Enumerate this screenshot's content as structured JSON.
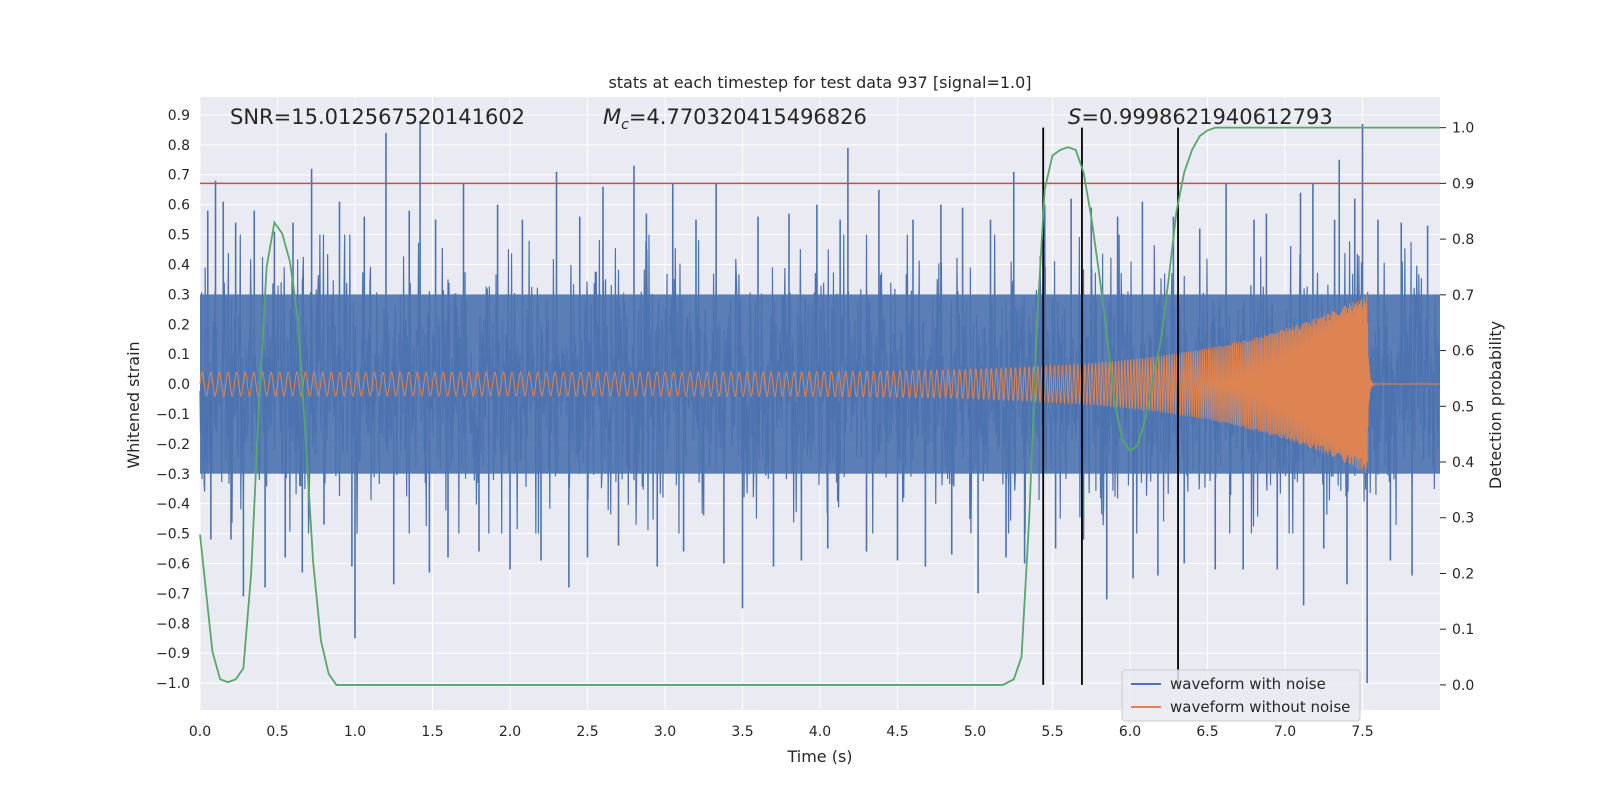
{
  "chart_data": {
    "type": "line",
    "title": "stats at each timestep for test data 937 [signal=1.0]",
    "xlabel": "Time (s)",
    "ylabel": "Whitened strain",
    "y2label": "Detection probability",
    "xlim": [
      0.0,
      8.0
    ],
    "ylim": [
      -1.09,
      0.96
    ],
    "y2lim": [
      -0.045,
      1.055
    ],
    "xticks": [
      0.0,
      0.5,
      1.0,
      1.5,
      2.0,
      2.5,
      3.0,
      3.5,
      4.0,
      4.5,
      5.0,
      5.5,
      6.0,
      6.5,
      7.0,
      7.5
    ],
    "xtick_labels": [
      "0.0",
      "0.5",
      "1.0",
      "1.5",
      "2.0",
      "2.5",
      "3.0",
      "3.5",
      "4.0",
      "4.5",
      "5.0",
      "5.5",
      "6.0",
      "6.5",
      "7.0",
      "7.5"
    ],
    "yticks": [
      0.9,
      0.8,
      0.7,
      0.6,
      0.5,
      0.4,
      0.3,
      0.2,
      0.1,
      0.0,
      -0.1,
      -0.2,
      -0.3,
      -0.4,
      -0.5,
      -0.6,
      -0.7,
      -0.8,
      -0.9,
      -1.0
    ],
    "ytick_labels": [
      "0.9",
      "0.8",
      "0.7",
      "0.6",
      "0.5",
      "0.4",
      "0.3",
      "0.2",
      "0.1",
      "0.0",
      "−0.1",
      "−0.2",
      "−0.3",
      "−0.4",
      "−0.5",
      "−0.6",
      "−0.7",
      "−0.8",
      "−0.9",
      "−1.0"
    ],
    "y2ticks": [
      1.0,
      0.9,
      0.8,
      0.7,
      0.6,
      0.5,
      0.4,
      0.3,
      0.2,
      0.1,
      0.0
    ],
    "y2tick_labels": [
      "1.0",
      "0.9",
      "0.8",
      "0.7",
      "0.6",
      "0.5",
      "0.4",
      "0.3",
      "0.2",
      "0.1",
      "0.0"
    ],
    "grid": true,
    "annotations": {
      "snr": "SNR=15.012567520141602",
      "mc_symbol": "M",
      "mc_sub": "c",
      "mc_value": "=4.770320415496826",
      "s_symbol": "S",
      "s_value": "=0.9998621940612793"
    },
    "threshold": {
      "value": 0.9,
      "axis": "y2",
      "color": "#c44e52"
    },
    "vertical_lines": {
      "x": [
        5.44,
        5.69,
        6.31
      ],
      "y2_range": [
        0.0,
        1.0
      ],
      "color": "#000000"
    },
    "series": [
      {
        "name": "waveform with noise",
        "axis": "y",
        "color": "#4c72b0",
        "noise_std": 0.2,
        "spikes": [
          [
            0.05,
            0.58
          ],
          [
            0.07,
            -0.52
          ],
          [
            0.1,
            0.68
          ],
          [
            0.15,
            0.61
          ],
          [
            0.2,
            -0.52
          ],
          [
            0.23,
            0.54
          ],
          [
            0.28,
            -0.71
          ],
          [
            0.35,
            0.58
          ],
          [
            0.42,
            -0.68
          ],
          [
            0.48,
            0.51
          ],
          [
            0.55,
            -0.58
          ],
          [
            0.6,
            0.54
          ],
          [
            0.66,
            -0.63
          ],
          [
            0.72,
            0.72
          ],
          [
            0.8,
            -0.47
          ],
          [
            0.9,
            0.61
          ],
          [
            0.98,
            -0.61
          ],
          [
            1.0,
            -0.85
          ],
          [
            1.06,
            0.56
          ],
          [
            1.2,
            0.84
          ],
          [
            1.25,
            -0.67
          ],
          [
            1.35,
            0.58
          ],
          [
            1.42,
            0.88
          ],
          [
            1.48,
            -0.63
          ],
          [
            1.52,
            0.55
          ],
          [
            1.6,
            -0.58
          ],
          [
            1.7,
            0.67
          ],
          [
            1.8,
            -0.56
          ],
          [
            1.92,
            0.6
          ],
          [
            2.0,
            -0.62
          ],
          [
            2.08,
            0.55
          ],
          [
            2.2,
            -0.59
          ],
          [
            2.3,
            0.71
          ],
          [
            2.38,
            -0.68
          ],
          [
            2.45,
            0.56
          ],
          [
            2.5,
            -0.58
          ],
          [
            2.6,
            0.66
          ],
          [
            2.7,
            -0.54
          ],
          [
            2.8,
            0.73
          ],
          [
            2.88,
            0.57
          ],
          [
            2.95,
            -0.61
          ],
          [
            3.05,
            0.67
          ],
          [
            3.12,
            -0.56
          ],
          [
            3.2,
            0.55
          ],
          [
            3.33,
            0.67
          ],
          [
            3.38,
            -0.6
          ],
          [
            3.5,
            -0.75
          ],
          [
            3.6,
            0.56
          ],
          [
            3.7,
            -0.61
          ],
          [
            3.8,
            0.57
          ],
          [
            3.88,
            -0.59
          ],
          [
            3.98,
            0.6
          ],
          [
            4.05,
            -0.55
          ],
          [
            4.13,
            0.55
          ],
          [
            4.18,
            0.79
          ],
          [
            4.3,
            -0.56
          ],
          [
            4.38,
            0.65
          ],
          [
            4.5,
            -0.59
          ],
          [
            4.6,
            0.55
          ],
          [
            4.68,
            -0.61
          ],
          [
            4.78,
            0.6
          ],
          [
            4.85,
            -0.57
          ],
          [
            4.92,
            0.59
          ],
          [
            5.02,
            -0.7
          ],
          [
            5.1,
            0.55
          ],
          [
            5.2,
            -0.58
          ],
          [
            5.25,
            0.71
          ],
          [
            5.32,
            -0.6
          ],
          [
            5.45,
            0.6
          ],
          [
            5.52,
            -0.55
          ],
          [
            5.62,
            0.62
          ],
          [
            5.7,
            -0.52
          ],
          [
            5.75,
            0.59
          ],
          [
            5.85,
            -0.72
          ],
          [
            5.92,
            0.56
          ],
          [
            6.02,
            -0.65
          ],
          [
            6.08,
            0.61
          ],
          [
            6.18,
            -0.64
          ],
          [
            6.28,
            0.56
          ],
          [
            6.35,
            -0.6
          ],
          [
            6.45,
            0.52
          ],
          [
            6.55,
            -0.62
          ],
          [
            6.62,
            0.67
          ],
          [
            6.73,
            -0.62
          ],
          [
            6.8,
            0.55
          ],
          [
            6.88,
            0.57
          ],
          [
            6.95,
            -0.62
          ],
          [
            7.1,
            0.64
          ],
          [
            7.12,
            -0.74
          ],
          [
            7.18,
            0.67
          ],
          [
            7.25,
            -0.55
          ],
          [
            7.32,
            0.55
          ],
          [
            7.35,
            0.75
          ],
          [
            7.4,
            -0.67
          ],
          [
            7.45,
            0.62
          ],
          [
            7.5,
            0.87
          ],
          [
            7.53,
            -1.0
          ],
          [
            7.6,
            0.55
          ],
          [
            7.68,
            -0.59
          ],
          [
            7.75,
            0.54
          ],
          [
            7.82,
            -0.64
          ],
          [
            7.92,
            0.53
          ]
        ]
      },
      {
        "name": "waveform without noise",
        "axis": "y",
        "color": "#dd8452",
        "chirp": {
          "start_amp": 0.04,
          "peak_amp": 0.3,
          "merger_time": 7.53,
          "ringdown_end": 7.58,
          "start_freq": 18,
          "end_freq": 150
        }
      },
      {
        "name": "detection probability",
        "axis": "y2",
        "color": "#55a868",
        "x": [
          0.0,
          0.08,
          0.13,
          0.18,
          0.23,
          0.28,
          0.33,
          0.38,
          0.43,
          0.48,
          0.53,
          0.58,
          0.63,
          0.68,
          0.73,
          0.78,
          0.83,
          0.88,
          0.93,
          1.0,
          1.5,
          2.0,
          3.0,
          4.0,
          5.0,
          5.18,
          5.25,
          5.3,
          5.35,
          5.4,
          5.45,
          5.5,
          5.55,
          5.6,
          5.65,
          5.7,
          5.75,
          5.8,
          5.85,
          5.9,
          5.95,
          6.0,
          6.05,
          6.1,
          6.15,
          6.2,
          6.25,
          6.3,
          6.35,
          6.4,
          6.45,
          6.5,
          6.55,
          6.6,
          6.7,
          7.0,
          7.5,
          8.0
        ],
        "y": [
          0.27,
          0.06,
          0.01,
          0.005,
          0.01,
          0.03,
          0.2,
          0.5,
          0.75,
          0.83,
          0.81,
          0.76,
          0.66,
          0.45,
          0.22,
          0.08,
          0.02,
          0.0,
          0.0,
          0.0,
          0.0,
          0.0,
          0.0,
          0.0,
          0.0,
          0.0,
          0.01,
          0.05,
          0.3,
          0.65,
          0.89,
          0.95,
          0.96,
          0.965,
          0.96,
          0.92,
          0.84,
          0.74,
          0.63,
          0.51,
          0.44,
          0.42,
          0.43,
          0.48,
          0.55,
          0.62,
          0.73,
          0.85,
          0.92,
          0.96,
          0.985,
          0.995,
          1.0,
          1.0,
          1.0,
          1.0,
          1.0,
          1.0
        ]
      }
    ],
    "legend": {
      "placement": "bottom-right",
      "entries": [
        "waveform with noise",
        "waveform without noise"
      ]
    }
  }
}
